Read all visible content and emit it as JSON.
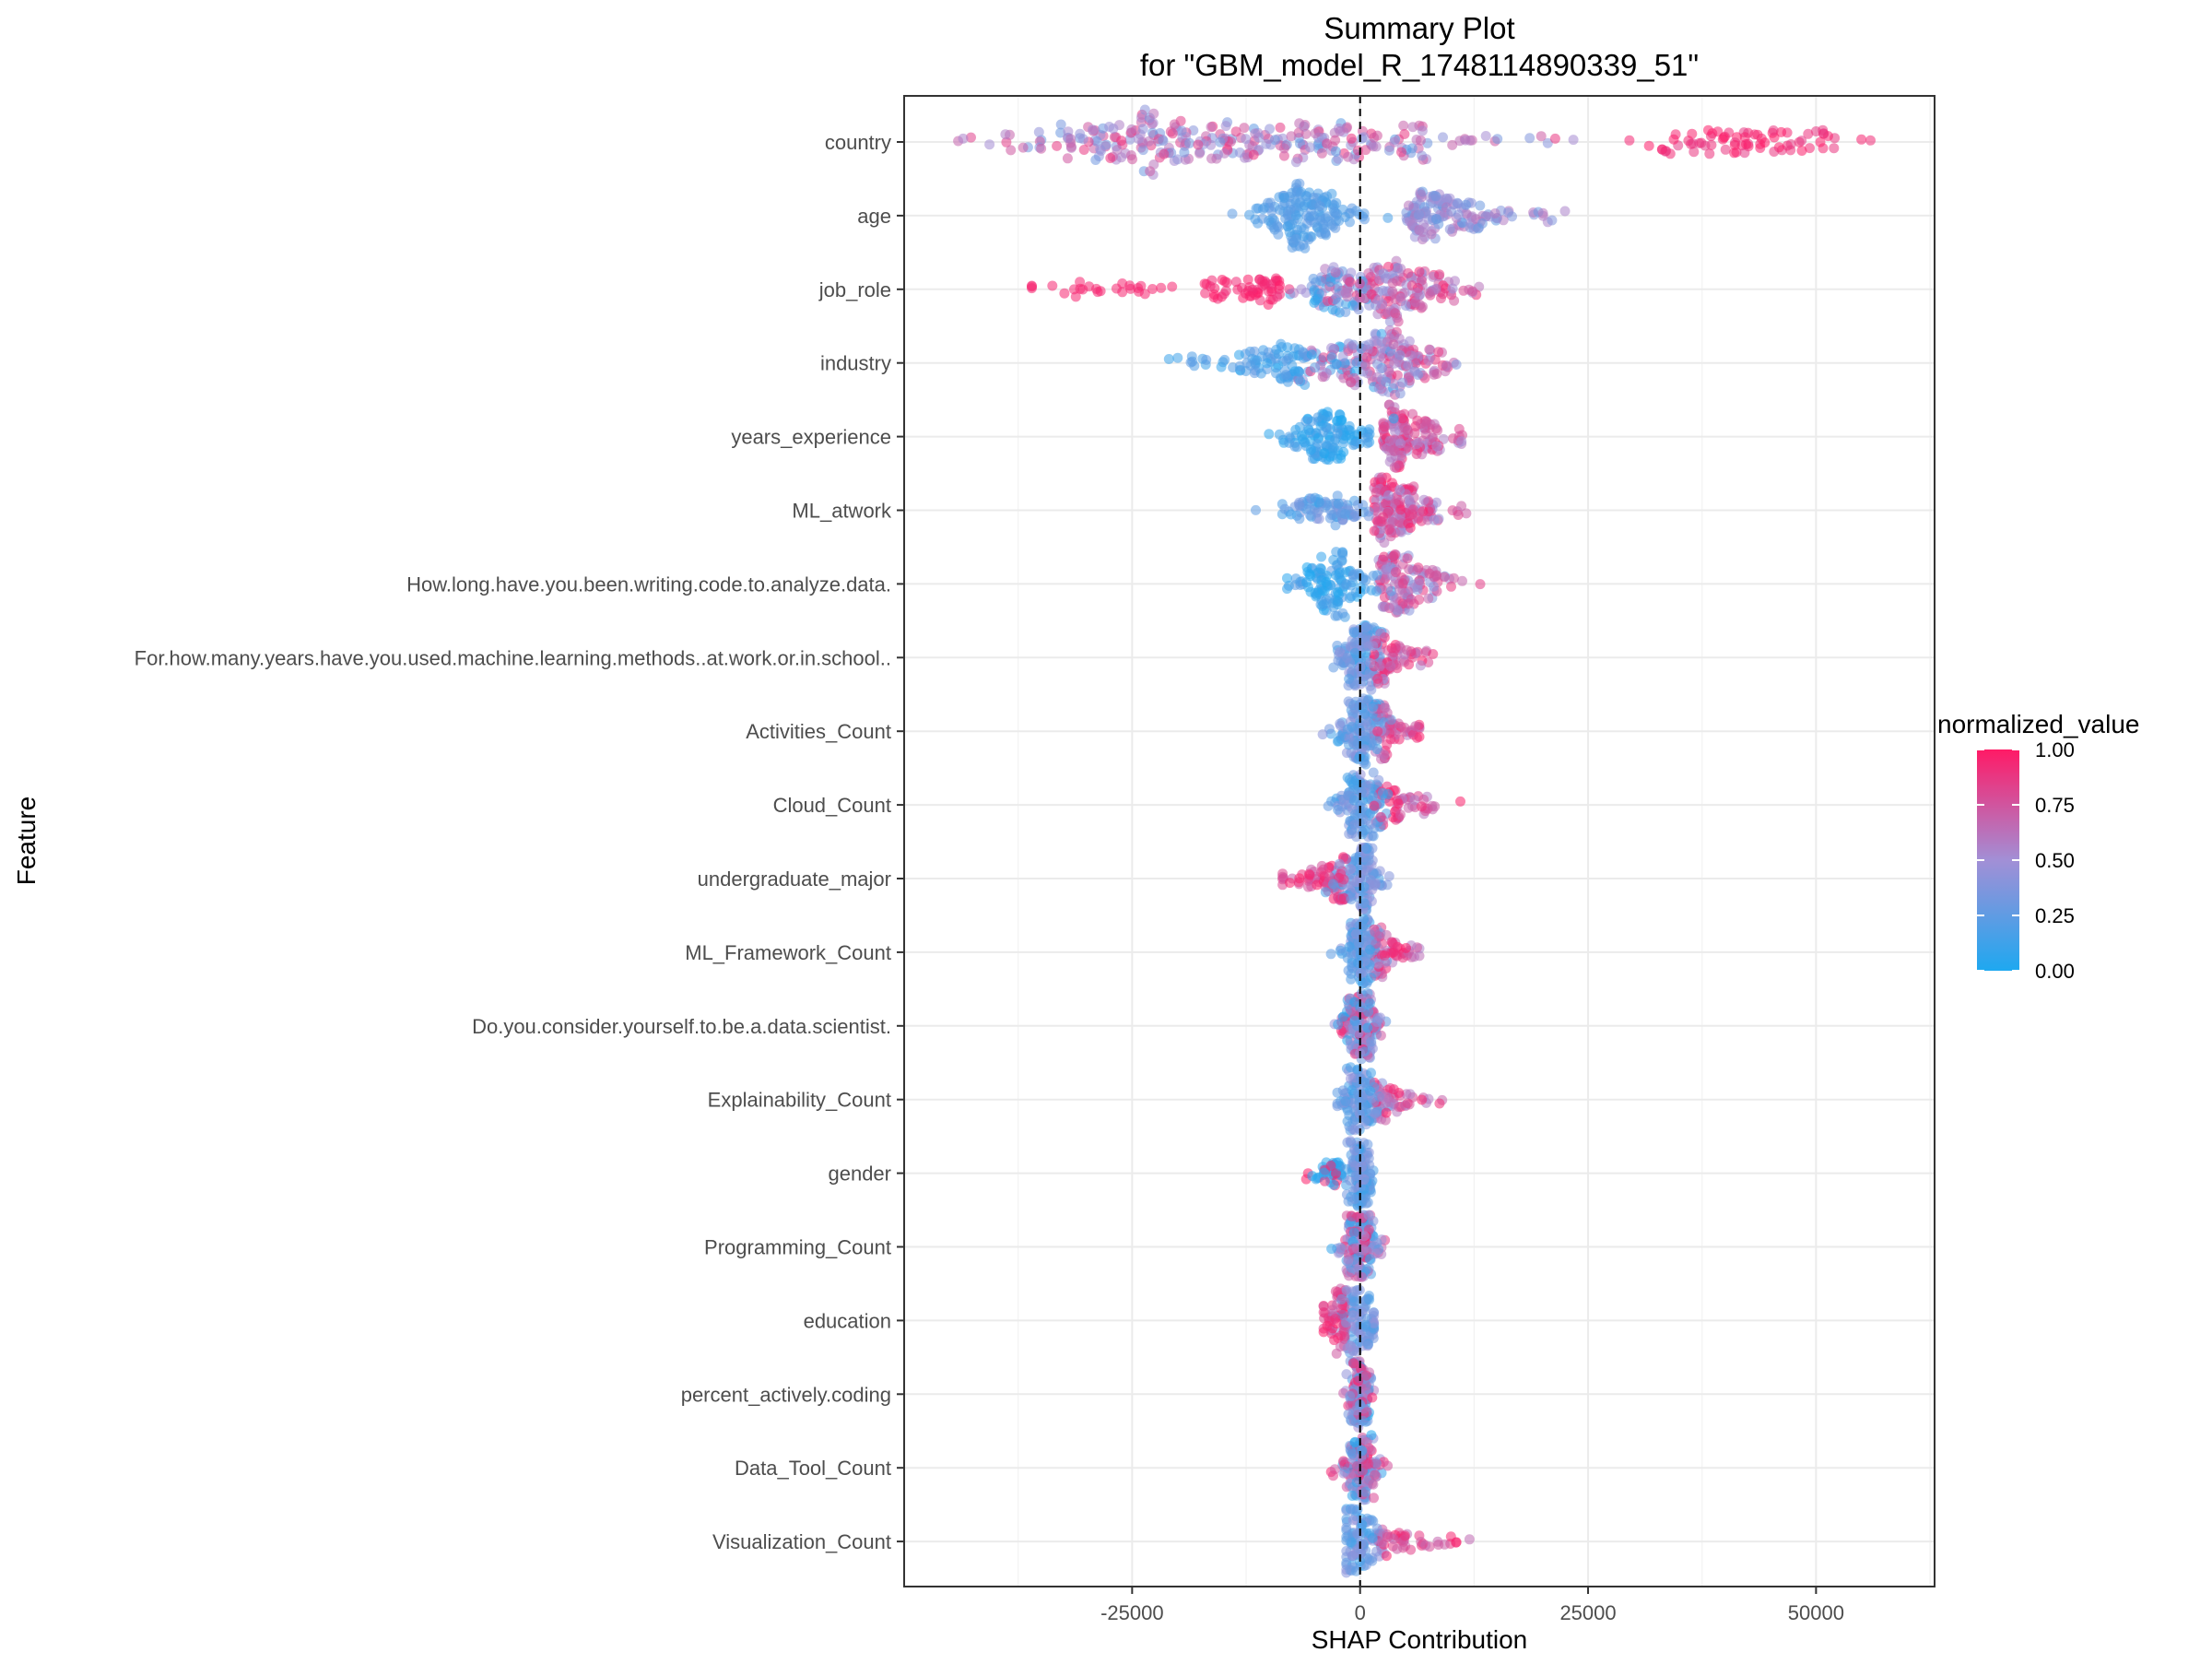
{
  "chart_data": {
    "type": "scatter",
    "title": "Summary Plot",
    "subtitle": "for \"GBM_model_R_1748114890339_51\"",
    "xlabel": "SHAP Contribution",
    "ylabel": "Feature",
    "xlim": [
      -50000,
      63000
    ],
    "x_ticks": [
      -25000,
      0,
      25000,
      50000
    ],
    "x_tick_labels": [
      "-25000",
      "0",
      "25000",
      "50000"
    ],
    "reference_line_x": 0,
    "grid": true,
    "legend": {
      "title": "normalized_value",
      "placement": "right",
      "ticks": [
        1.0,
        0.75,
        0.5,
        0.25,
        0.0
      ],
      "tick_labels": [
        "1.00",
        "0.75",
        "0.50",
        "0.25",
        "0.00"
      ],
      "color_low": "#1ea8f0",
      "color_mid": "#a28fd6",
      "color_high": "#ff1a66"
    },
    "features": [
      {
        "name": "country",
        "min": -45000,
        "max": 57000,
        "mode": "country"
      },
      {
        "name": "age",
        "min": -17000,
        "max": 23500,
        "mode": "age"
      },
      {
        "name": "job_role",
        "min": -36000,
        "max": 24500,
        "mode": "job"
      },
      {
        "name": "industry",
        "min": -22500,
        "max": 17000,
        "mode": "industry"
      },
      {
        "name": "years_experience",
        "min": -10000,
        "max": 15500,
        "mode": "years"
      },
      {
        "name": "ML_atwork",
        "min": -11500,
        "max": 13500,
        "mode": "mlatwork"
      },
      {
        "name": "How.long.have.you.been.writing.code.to.analyze.data.",
        "min": -8000,
        "max": 15500,
        "mode": "howlong"
      },
      {
        "name": "For.how.many.years.have.you.used.machine.learning.methods..at.work.or.in.school..",
        "min": -4500,
        "max": 8000,
        "mode": "pos"
      },
      {
        "name": "Activities_Count",
        "min": -5000,
        "max": 6500,
        "mode": "pos"
      },
      {
        "name": "Cloud_Count",
        "min": -3500,
        "max": 11000,
        "mode": "pos"
      },
      {
        "name": "undergraduate_major",
        "min": -8500,
        "max": 5500,
        "mode": "neg"
      },
      {
        "name": "ML_Framework_Count",
        "min": -3500,
        "max": 6500,
        "mode": "pos"
      },
      {
        "name": "Do.you.consider.yourself.to.be.a.data.scientist.",
        "min": -3500,
        "max": 4000,
        "mode": "mixed"
      },
      {
        "name": "Explainability_Count",
        "min": -2500,
        "max": 9000,
        "mode": "pos"
      },
      {
        "name": "gender",
        "min": -9000,
        "max": 2000,
        "mode": "gender"
      },
      {
        "name": "Programming_Count",
        "min": -4000,
        "max": 3000,
        "mode": "mixed"
      },
      {
        "name": "education",
        "min": -4000,
        "max": 1500,
        "mode": "neg"
      },
      {
        "name": "percent_actively.coding",
        "min": -2500,
        "max": 2500,
        "mode": "mixed"
      },
      {
        "name": "Data_Tool_Count",
        "min": -4000,
        "max": 4500,
        "mode": "mixed"
      },
      {
        "name": "Visualization_Count",
        "min": -1500,
        "max": 12000,
        "mode": "pos"
      }
    ]
  }
}
